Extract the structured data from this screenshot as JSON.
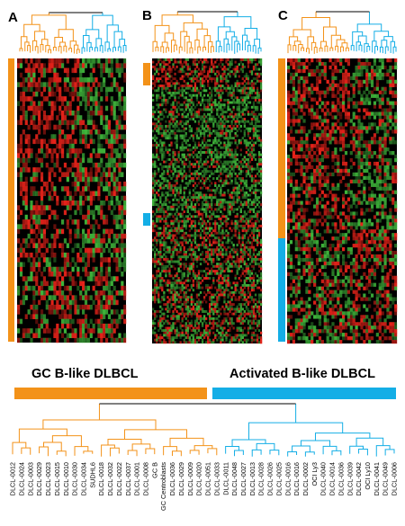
{
  "panels": [
    {
      "letter": "A"
    },
    {
      "letter": "B"
    },
    {
      "letter": "C"
    }
  ],
  "groups": {
    "gcb": {
      "label": "GC B-like DLBCL",
      "color": "#f39219"
    },
    "abc": {
      "label": "Activated B-like DLBCL",
      "color": "#14aee6"
    }
  },
  "heatmap_colors": {
    "high": "#e8231a",
    "low": "#3fb53b",
    "mid": "#000000"
  },
  "dendrogram_leaves": [
    {
      "label": "DLCL-0012",
      "group": "gcb"
    },
    {
      "label": "DLCL-0024",
      "group": "gcb"
    },
    {
      "label": "DLCL-0003",
      "group": "gcb"
    },
    {
      "label": "DLCL-0029",
      "group": "gcb"
    },
    {
      "label": "DLCL-0023",
      "group": "gcb"
    },
    {
      "label": "DLCL-0015",
      "group": "gcb"
    },
    {
      "label": "DLCL-0010",
      "group": "gcb"
    },
    {
      "label": "DLCL-0030",
      "group": "gcb"
    },
    {
      "label": "DLCL-0034",
      "group": "gcb"
    },
    {
      "label": "SUDHL6",
      "group": "gcb"
    },
    {
      "label": "DLCL-0018",
      "group": "gcb"
    },
    {
      "label": "DLCL-0032",
      "group": "gcb"
    },
    {
      "label": "DLCL-0022",
      "group": "gcb"
    },
    {
      "label": "DLCL-0037",
      "group": "gcb"
    },
    {
      "label": "DLCL-0001",
      "group": "gcb"
    },
    {
      "label": "DLCL-0008",
      "group": "gcb"
    },
    {
      "label": "GC B",
      "group": "gcb"
    },
    {
      "label": "GC Centroblasts",
      "group": "gcb"
    },
    {
      "label": "DLCL-0036",
      "group": "gcb"
    },
    {
      "label": "DLCL-0029",
      "group": "gcb"
    },
    {
      "label": "DLCL-0009",
      "group": "gcb"
    },
    {
      "label": "DLCL-0020",
      "group": "gcb"
    },
    {
      "label": "DLCL-0051",
      "group": "gcb"
    },
    {
      "label": "DLCL-0033",
      "group": "gcb"
    },
    {
      "label": "DLCL-0011",
      "group": "abc"
    },
    {
      "label": "DLCL-0048",
      "group": "abc"
    },
    {
      "label": "DLCL-0027",
      "group": "abc"
    },
    {
      "label": "DLCL-0013",
      "group": "abc"
    },
    {
      "label": "DLCL-0028",
      "group": "abc"
    },
    {
      "label": "DLCL-0026",
      "group": "abc"
    },
    {
      "label": "DLCL-0025",
      "group": "abc"
    },
    {
      "label": "DLCL-0016",
      "group": "abc"
    },
    {
      "label": "DLCL-0016",
      "group": "abc"
    },
    {
      "label": "DLCL-0002",
      "group": "abc"
    },
    {
      "label": "OCI Ly3",
      "group": "abc"
    },
    {
      "label": "DLCL-0040",
      "group": "abc"
    },
    {
      "label": "DLCL-0014",
      "group": "abc"
    },
    {
      "label": "DLCL-0036",
      "group": "abc"
    },
    {
      "label": "DLCL-0039",
      "group": "abc"
    },
    {
      "label": "DLCL-0042",
      "group": "abc"
    },
    {
      "label": "OCI Ly10",
      "group": "abc"
    },
    {
      "label": "DLCL-0041",
      "group": "abc"
    },
    {
      "label": "DLCL-0049",
      "group": "abc"
    },
    {
      "label": "DLCL-0006",
      "group": "abc"
    }
  ]
}
